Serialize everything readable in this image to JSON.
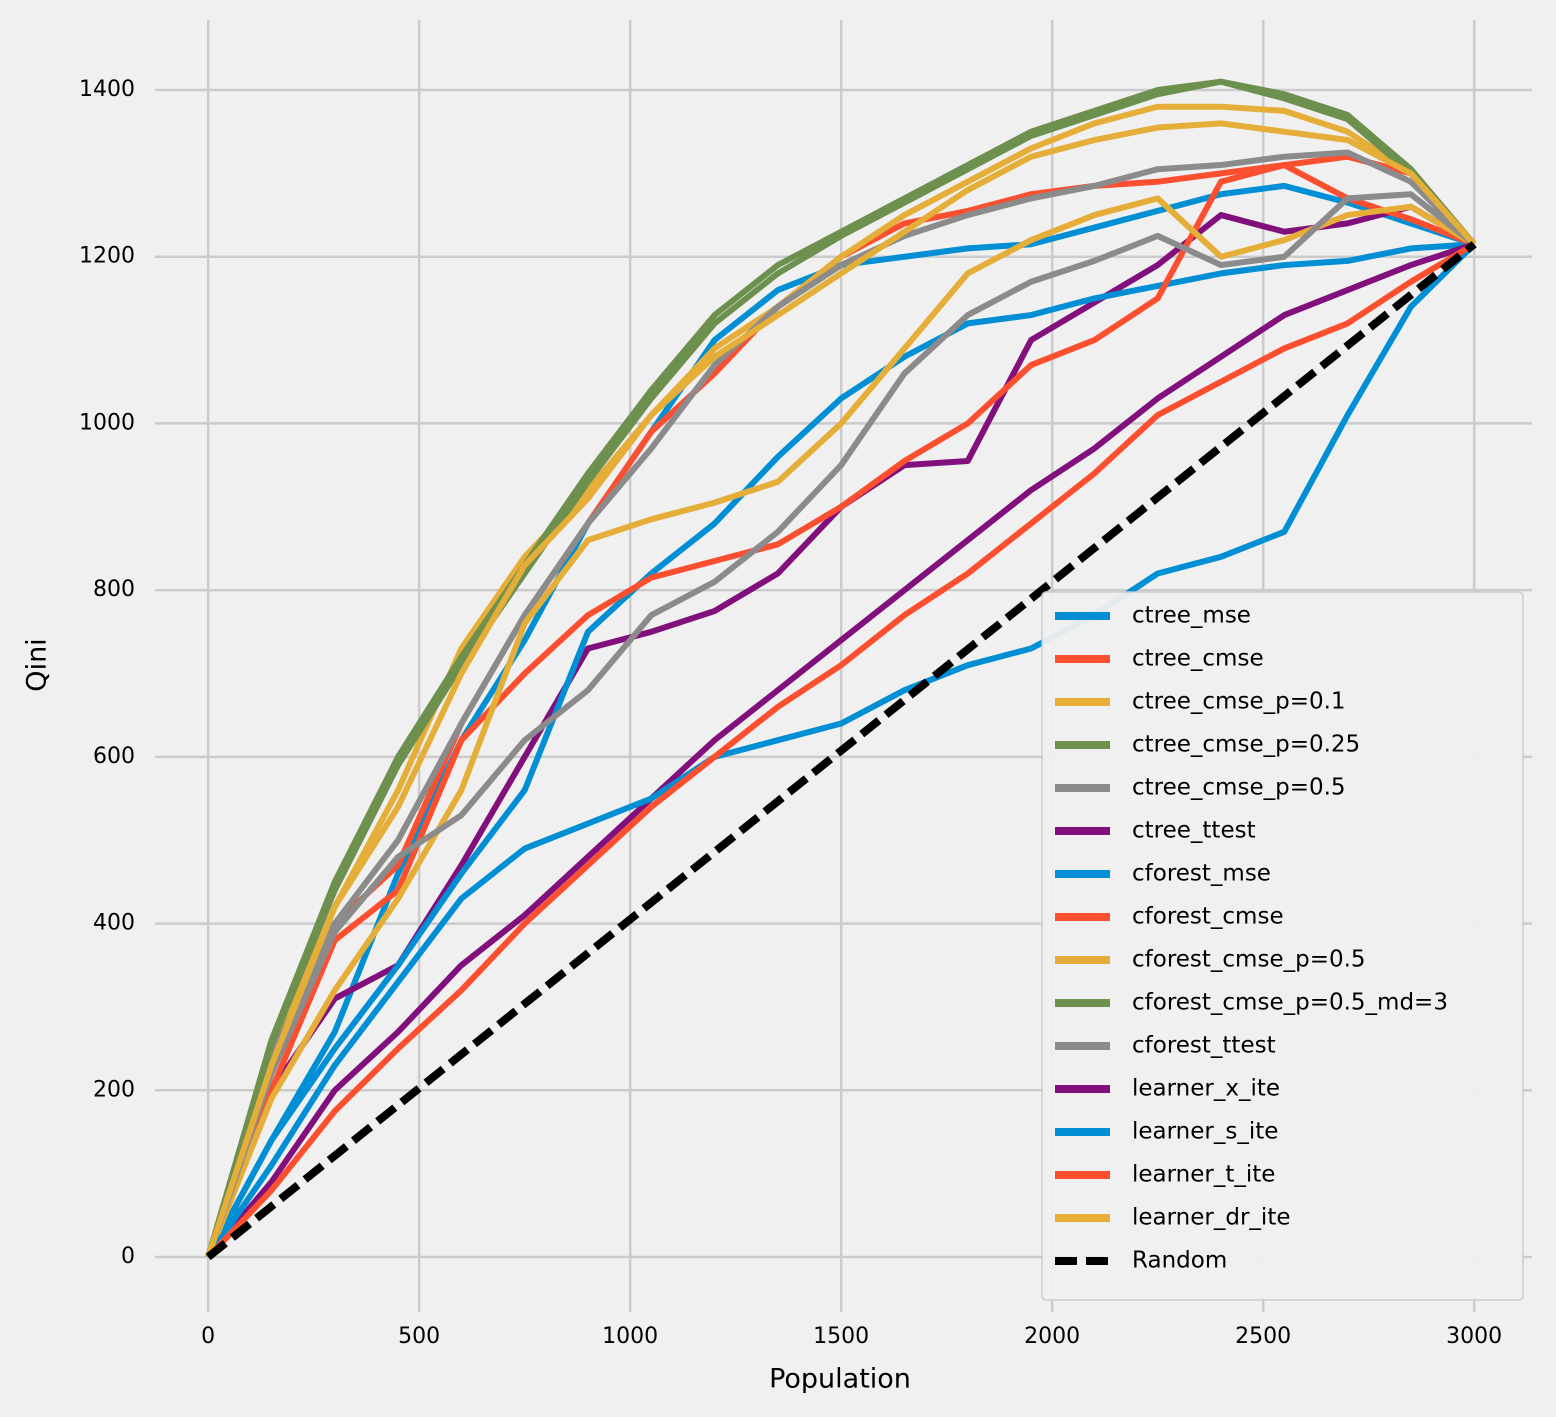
{
  "chart_data": {
    "type": "line",
    "xlabel": "Population",
    "ylabel": "Qini",
    "x": [
      0,
      150,
      300,
      450,
      600,
      750,
      900,
      1050,
      1200,
      1350,
      1500,
      1650,
      1800,
      1950,
      2100,
      2250,
      2400,
      2550,
      2700,
      2850,
      3000
    ],
    "series": [
      {
        "name": "ctree_mse",
        "color": "#008fd5",
        "values": [
          0,
          140,
          270,
          460,
          620,
          740,
          880,
          990,
          1100,
          1160,
          1190,
          1200,
          1210,
          1215,
          1235,
          1255,
          1275,
          1285,
          1265,
          1240,
          1215
        ]
      },
      {
        "name": "ctree_cmse",
        "color": "#fc4f30",
        "values": [
          0,
          240,
          400,
          470,
          640,
          770,
          880,
          990,
          1060,
          1140,
          1200,
          1240,
          1255,
          1275,
          1285,
          1290,
          1300,
          1310,
          1320,
          1300,
          1215
        ]
      },
      {
        "name": "ctree_cmse_p=0.1",
        "color": "#e5ae38",
        "values": [
          0,
          240,
          420,
          560,
          730,
          840,
          920,
          1010,
          1090,
          1140,
          1200,
          1250,
          1290,
          1330,
          1360,
          1380,
          1380,
          1375,
          1350,
          1300,
          1215
        ]
      },
      {
        "name": "ctree_cmse_p=0.25",
        "color": "#6d904f",
        "values": [
          0,
          260,
          450,
          600,
          720,
          830,
          940,
          1040,
          1130,
          1190,
          1230,
          1270,
          1310,
          1350,
          1375,
          1400,
          1410,
          1390,
          1365,
          1300,
          1215
        ]
      },
      {
        "name": "ctree_cmse_p=0.5",
        "color": "#8b8b8b",
        "values": [
          0,
          240,
          400,
          500,
          640,
          770,
          880,
          970,
          1070,
          1140,
          1190,
          1225,
          1250,
          1270,
          1285,
          1305,
          1310,
          1320,
          1325,
          1290,
          1215
        ]
      },
      {
        "name": "ctree_ttest",
        "color": "#810f7c",
        "values": [
          0,
          200,
          310,
          350,
          470,
          600,
          730,
          750,
          775,
          820,
          900,
          950,
          955,
          1100,
          1145,
          1190,
          1250,
          1230,
          1240,
          1260,
          1215
        ]
      },
      {
        "name": "cforest_mse",
        "color": "#008fd5",
        "values": [
          0,
          140,
          250,
          350,
          460,
          560,
          750,
          820,
          880,
          960,
          1030,
          1080,
          1120,
          1130,
          1150,
          1165,
          1180,
          1190,
          1195,
          1210,
          1215
        ]
      },
      {
        "name": "cforest_cmse",
        "color": "#fc4f30",
        "values": [
          0,
          200,
          380,
          440,
          620,
          700,
          770,
          815,
          835,
          855,
          900,
          955,
          1000,
          1070,
          1100,
          1150,
          1290,
          1310,
          1270,
          1245,
          1215
        ]
      },
      {
        "name": "cforest_cmse_p=0.5",
        "color": "#e5ae38",
        "values": [
          0,
          190,
          320,
          430,
          560,
          760,
          860,
          885,
          905,
          930,
          1000,
          1090,
          1180,
          1220,
          1250,
          1270,
          1200,
          1220,
          1250,
          1260,
          1215
        ]
      },
      {
        "name": "cforest_cmse_p=0.5_md=3",
        "color": "#6d904f",
        "values": [
          0,
          255,
          440,
          590,
          710,
          820,
          930,
          1030,
          1120,
          1180,
          1225,
          1265,
          1305,
          1345,
          1370,
          1395,
          1410,
          1395,
          1370,
          1305,
          1215
        ]
      },
      {
        "name": "cforest_ttest",
        "color": "#8b8b8b",
        "values": [
          0,
          220,
          390,
          480,
          530,
          620,
          680,
          770,
          810,
          870,
          950,
          1060,
          1130,
          1170,
          1195,
          1225,
          1190,
          1200,
          1270,
          1275,
          1215
        ]
      },
      {
        "name": "learner_x_ite",
        "color": "#810f7c",
        "values": [
          0,
          90,
          200,
          270,
          350,
          410,
          480,
          550,
          620,
          680,
          740,
          800,
          860,
          920,
          970,
          1030,
          1080,
          1130,
          1160,
          1190,
          1215
        ]
      },
      {
        "name": "learner_s_ite",
        "color": "#008fd5",
        "values": [
          0,
          110,
          230,
          330,
          430,
          490,
          520,
          550,
          600,
          620,
          640,
          680,
          710,
          730,
          770,
          820,
          840,
          870,
          1010,
          1140,
          1215
        ]
      },
      {
        "name": "learner_t_ite",
        "color": "#fc4f30",
        "values": [
          0,
          80,
          175,
          250,
          320,
          400,
          470,
          540,
          600,
          660,
          710,
          770,
          820,
          880,
          940,
          1010,
          1050,
          1090,
          1120,
          1170,
          1215
        ]
      },
      {
        "name": "learner_dr_ite",
        "color": "#e5ae38",
        "values": [
          0,
          230,
          420,
          540,
          700,
          830,
          910,
          1010,
          1080,
          1130,
          1180,
          1230,
          1280,
          1320,
          1340,
          1355,
          1360,
          1350,
          1340,
          1300,
          1215
        ]
      },
      {
        "name": "Random",
        "color": "#000000",
        "linestyle": "dashed",
        "values": [
          0,
          60.75,
          121.5,
          182.25,
          243,
          303.75,
          364.5,
          425.25,
          486,
          546.75,
          607.5,
          668.25,
          729,
          789.75,
          850.5,
          911.25,
          972,
          1032.75,
          1093.5,
          1154.25,
          1215
        ]
      }
    ],
    "xlim": [
      -126,
      3137
    ],
    "ylim": [
      -66,
      1484
    ],
    "xticks": [
      0,
      500,
      1000,
      1500,
      2000,
      2500,
      3000
    ],
    "yticks": [
      0,
      200,
      400,
      600,
      800,
      1000,
      1200,
      1400
    ],
    "grid": true,
    "legend": "lower right"
  }
}
